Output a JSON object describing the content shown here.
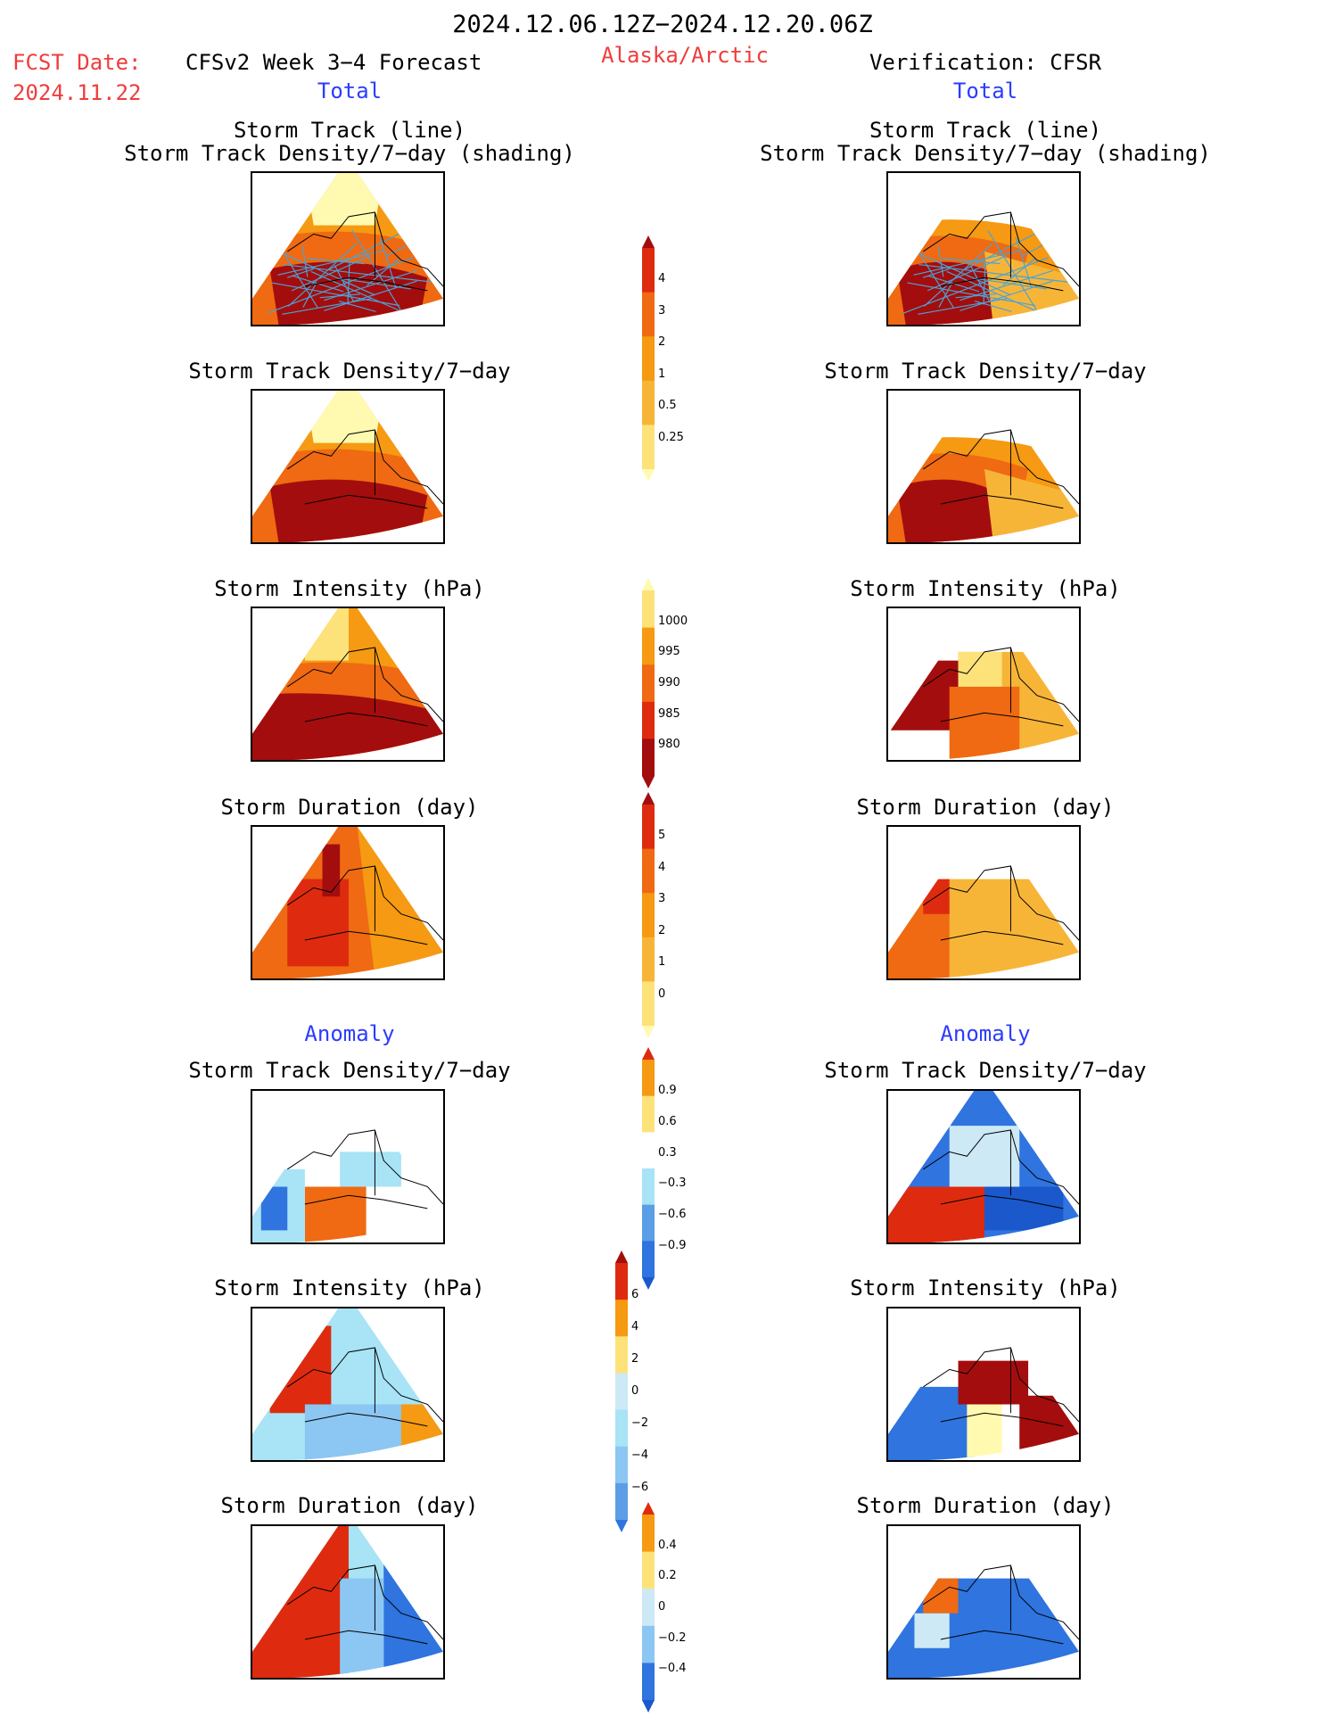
{
  "header": {
    "date_range": "2024.12.06.12Z−2024.12.20.06Z",
    "fcst_label": "FCST Date:",
    "fcst_date": "2024.11.22",
    "model_title": "CFSv2 Week 3−4 Forecast",
    "region": "Alaska/Arctic",
    "verification": "Verification: CFSR"
  },
  "sections": {
    "total": "Total",
    "anomaly": "Anomaly"
  },
  "panel_titles": {
    "track_line": "Storm Track (line)",
    "track_density_shading": "Storm Track Density/7−day (shading)",
    "track_density": "Storm Track Density/7−day",
    "intensity": "Storm Intensity (hPa)",
    "duration": "Storm Duration (day)"
  },
  "colors": {
    "warm": [
      "#fffab0",
      "#fde27a",
      "#f7b538",
      "#f59a12",
      "#ef6a12",
      "#de2b0f",
      "#a40d0d"
    ],
    "cool": [
      "#cde9f5",
      "#a8e3f6",
      "#8cc6f2",
      "#5b9ee6",
      "#2f74df",
      "#1a58cc"
    ],
    "track_line": "#4aa3d6"
  },
  "colorbars": [
    {
      "id": "density",
      "ticks": [
        "4",
        "3",
        "2",
        "1",
        "0.5",
        "0.25"
      ]
    },
    {
      "id": "intensity",
      "ticks": [
        "1000",
        "995",
        "990",
        "985",
        "980"
      ]
    },
    {
      "id": "duration",
      "ticks": [
        "5",
        "4",
        "3",
        "2",
        "1",
        "0"
      ]
    },
    {
      "id": "density-anom",
      "ticks": [
        "0.9",
        "0.6",
        "0.3",
        "−0.3",
        "−0.6",
        "−0.9"
      ]
    },
    {
      "id": "intensity-anom",
      "ticks": [
        "6",
        "4",
        "2",
        "0",
        "−2",
        "−4",
        "−6"
      ]
    },
    {
      "id": "duration-anom",
      "ticks": [
        "0.4",
        "0.2",
        "0",
        "−0.2",
        "−0.4"
      ]
    }
  ]
}
